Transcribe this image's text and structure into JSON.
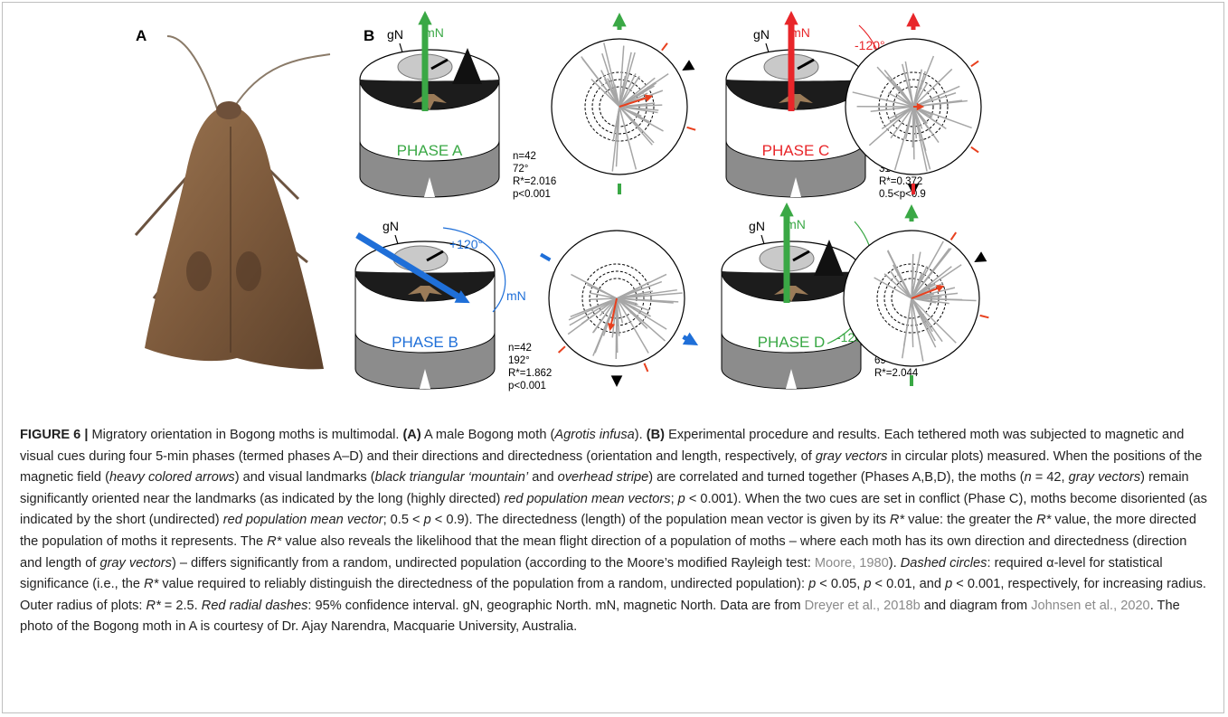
{
  "panels": {
    "a": "A",
    "b": "B"
  },
  "phases": [
    {
      "name": "PHASE A",
      "gn": "gN",
      "mn": "mN",
      "color": "#3aa845",
      "stats": [
        "n=42",
        "72°",
        "R*=2.016",
        "p<0.001"
      ]
    },
    {
      "name": "PHASE B",
      "gn": "gN",
      "mn": "mN",
      "shift": "+120°",
      "color": "#1f6fd8",
      "stats": [
        "n=42",
        "192°",
        "R*=1.862",
        "p<0.001"
      ]
    },
    {
      "name": "PHASE C",
      "gn": "gN",
      "mn": "mN",
      "shift": "-120°",
      "color": "#e8262a",
      "stats": [
        "n=42",
        "31°",
        "R*=0.372",
        "0.5<p<0.9"
      ]
    },
    {
      "name": "PHASE D",
      "gn": "gN",
      "mn": "mN",
      "shift": "-120°",
      "color": "#3aa845",
      "stats": [
        "n=42",
        "69°",
        "R*=2.044"
      ]
    }
  ],
  "caption": [
    {
      "text": "FIGURE 6 | ",
      "style": "b"
    },
    {
      "text": "Migratory orientation in Bogong moths is multimodal. "
    },
    {
      "text": "(A)",
      "style": "b"
    },
    {
      "text": " A male Bogong moth ("
    },
    {
      "text": "Agrotis infusa",
      "style": "i"
    },
    {
      "text": "). "
    },
    {
      "text": "(B)",
      "style": "b"
    },
    {
      "text": " Experimental procedure and results. Each tethered moth was subjected to magnetic and visual cues during four 5-min phases (termed phases A–D) and their directions and directedness (orientation and length, respectively, of "
    },
    {
      "text": "gray vectors",
      "style": "i"
    },
    {
      "text": " in circular plots) measured. When the positions of the magnetic field ("
    },
    {
      "text": "heavy colored arrows",
      "style": "i"
    },
    {
      "text": ") and visual landmarks ("
    },
    {
      "text": "black triangular ‘mountain’",
      "style": "i"
    },
    {
      "text": " and "
    },
    {
      "text": "overhead stripe",
      "style": "i"
    },
    {
      "text": ") are correlated and turned together (Phases A,B,D), the moths ("
    },
    {
      "text": "n",
      "style": "i"
    },
    {
      "text": " = 42, "
    },
    {
      "text": "gray vectors",
      "style": "i"
    },
    {
      "text": ") remain significantly oriented near the landmarks (as indicated by the long (highly directed) "
    },
    {
      "text": "red population mean vectors",
      "style": "i"
    },
    {
      "text": "; "
    },
    {
      "text": "p",
      "style": "i"
    },
    {
      "text": " < 0.001). When the two cues are set in conflict (Phase C), moths become disoriented (as indicated by the short (undirected) "
    },
    {
      "text": "red population mean vector",
      "style": "i"
    },
    {
      "text": "; 0.5 < "
    },
    {
      "text": "p",
      "style": "i"
    },
    {
      "text": " < 0.9). The directedness (length) of the population mean vector is given by its "
    },
    {
      "text": "R*",
      "style": "i"
    },
    {
      "text": " value: the greater the "
    },
    {
      "text": "R*",
      "style": "i"
    },
    {
      "text": " value, the more directed the population of moths it represents. The "
    },
    {
      "text": "R*",
      "style": "i"
    },
    {
      "text": " value also reveals the likelihood that the mean flight direction of a population of moths – where each moth has its own direction and directedness (direction and length of "
    },
    {
      "text": "gray vectors",
      "style": "i"
    },
    {
      "text": ") – differs significantly from a random, undirected population (according to the Moore’s modified Rayleigh test: "
    },
    {
      "text": "Moore, 1980",
      "style": "link"
    },
    {
      "text": "). "
    },
    {
      "text": "Dashed circles",
      "style": "i"
    },
    {
      "text": ": required α-level for statistical significance (i.e., the "
    },
    {
      "text": "R*",
      "style": "i"
    },
    {
      "text": " value required to reliably distinguish the directedness of the population from a random, undirected population): "
    },
    {
      "text": "p",
      "style": "i"
    },
    {
      "text": " < 0.05, "
    },
    {
      "text": "p",
      "style": "i"
    },
    {
      "text": " < 0.01, and "
    },
    {
      "text": "p",
      "style": "i"
    },
    {
      "text": " < 0.001, respectively, for increasing radius. Outer radius of plots: "
    },
    {
      "text": "R*",
      "style": "i"
    },
    {
      "text": " = 2.5. "
    },
    {
      "text": "Red radial dashes",
      "style": "i"
    },
    {
      "text": ": 95% confidence interval. gN, geographic North. mN, magnetic North. Data are from "
    },
    {
      "text": "Dreyer et al., 2018b",
      "style": "link"
    },
    {
      "text": " and diagram from "
    },
    {
      "text": "Johnsen et al., 2020",
      "style": "link"
    },
    {
      "text": ". The photo of the Bogong moth in A is courtesy of Dr. Ajay Narendra, Macquarie University, Australia."
    }
  ]
}
